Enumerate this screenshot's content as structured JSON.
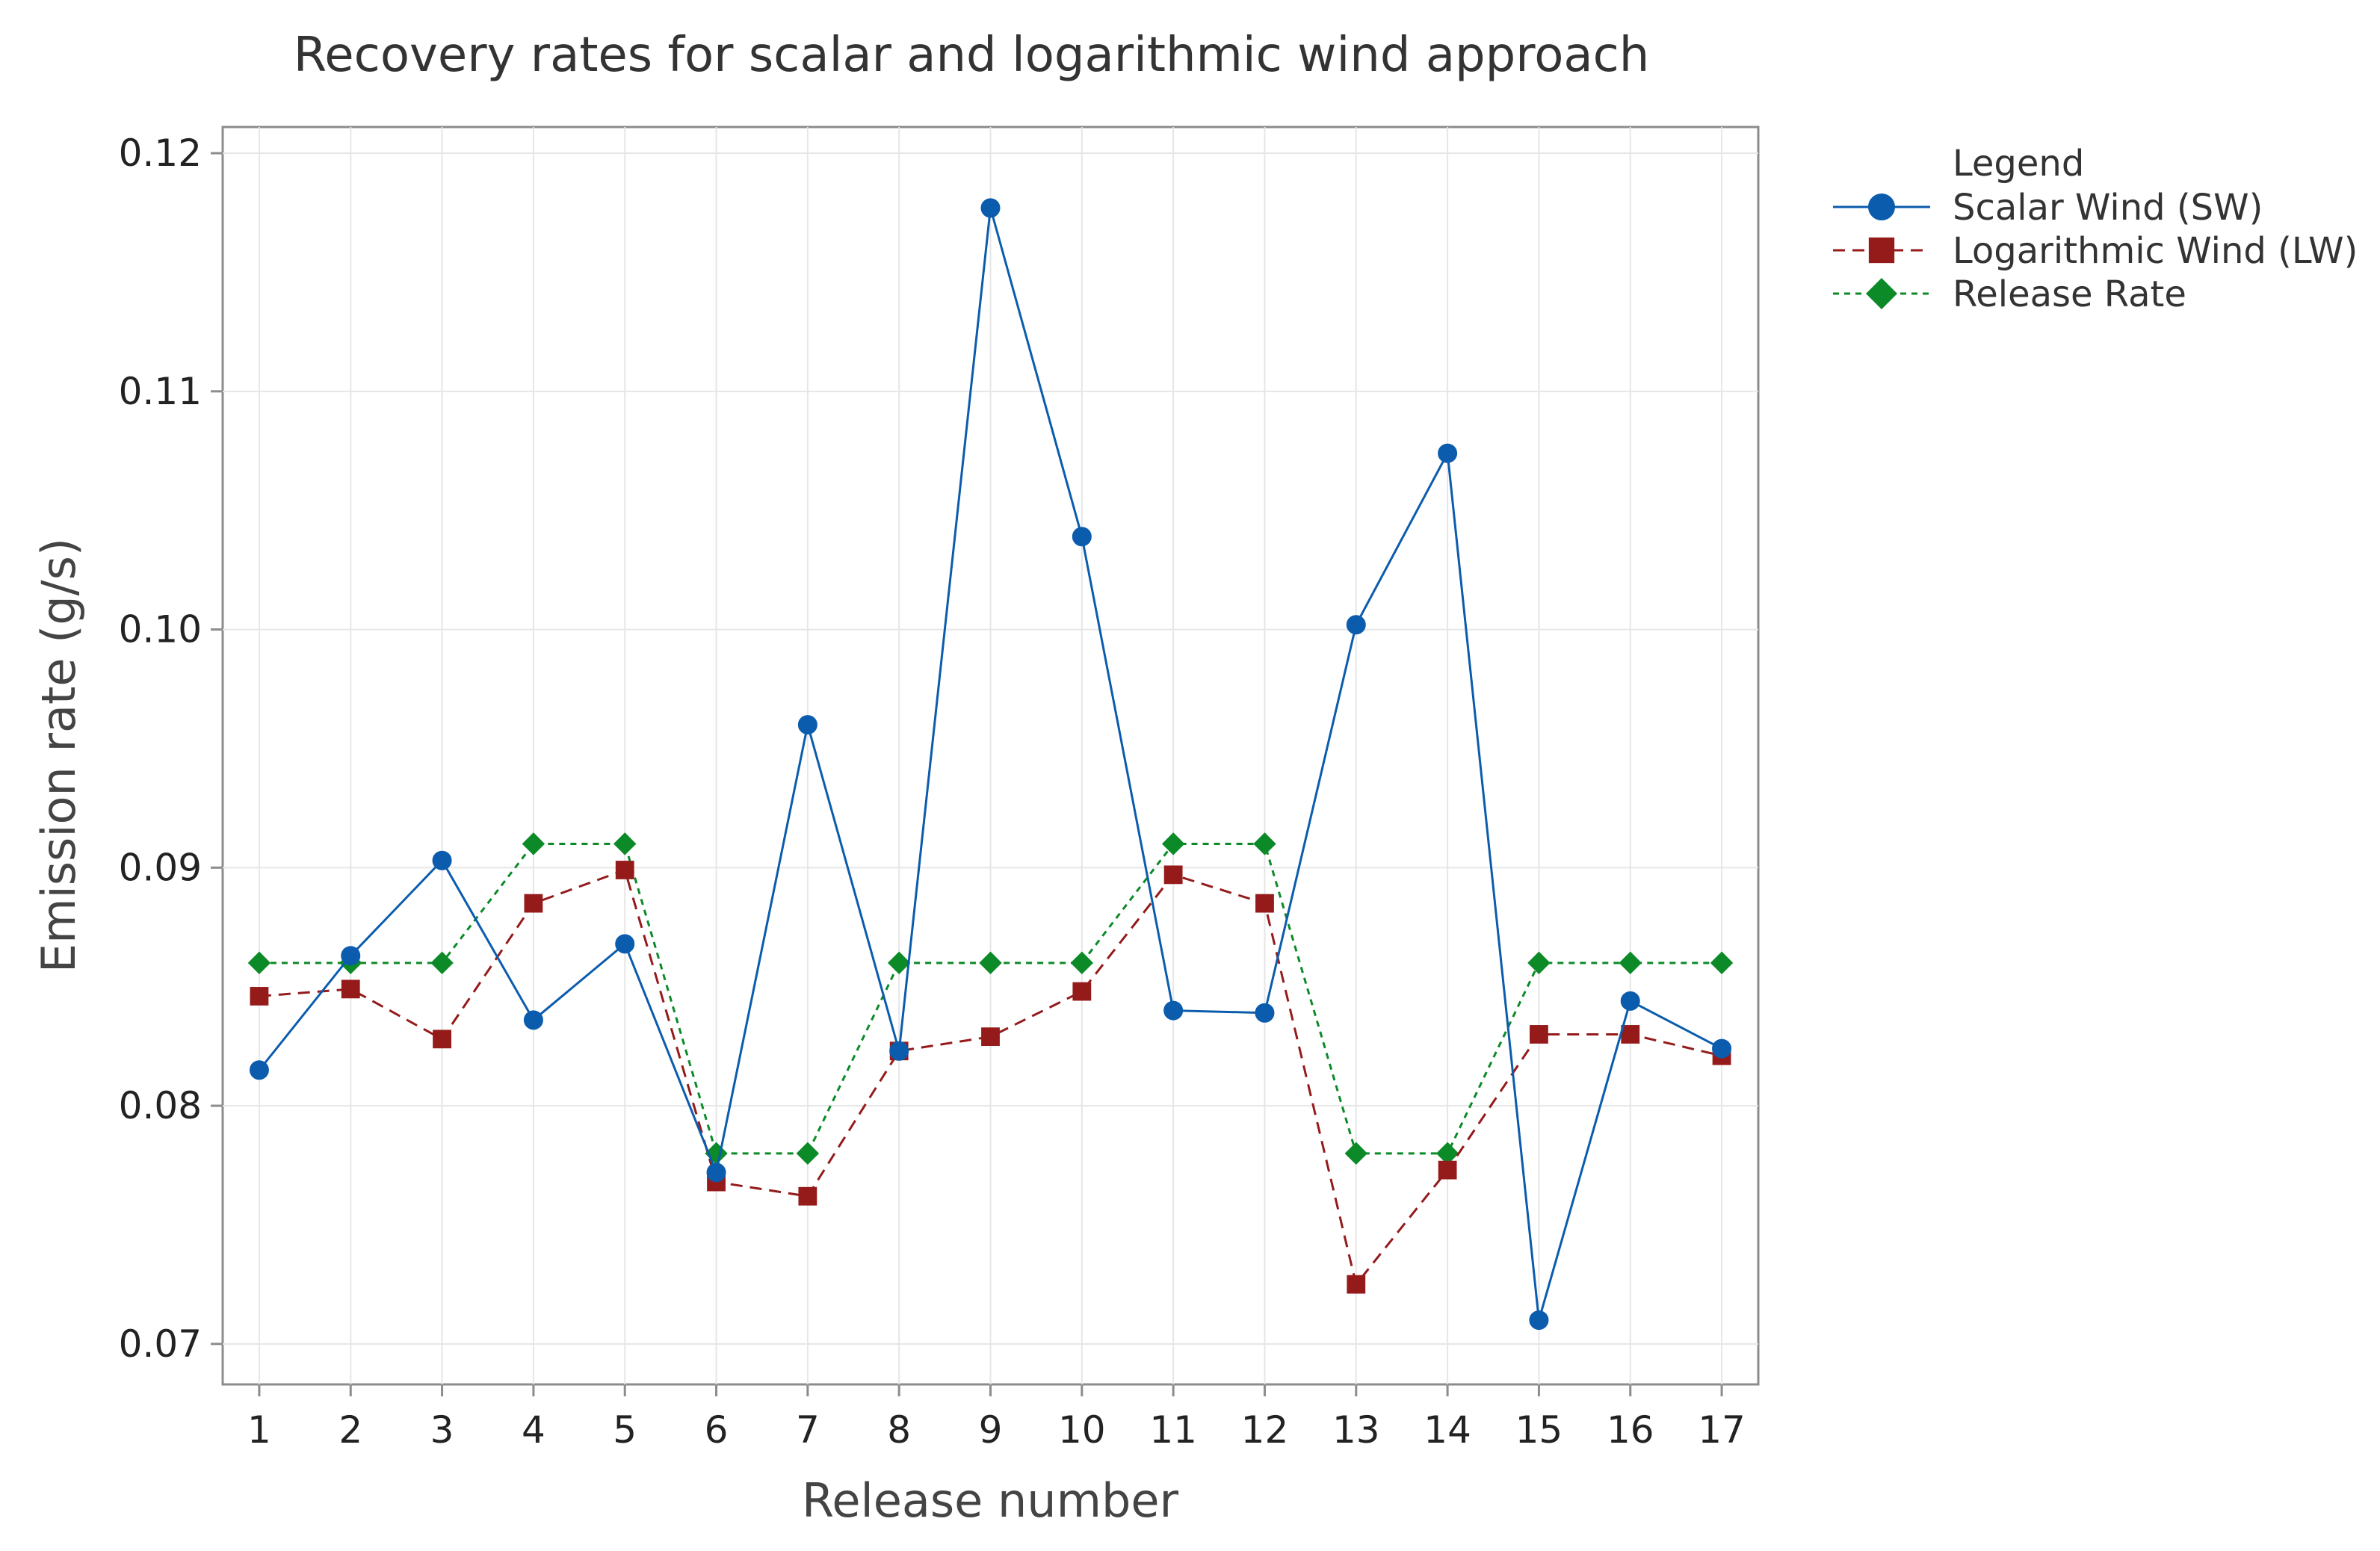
{
  "chart_data": {
    "type": "line",
    "title": "Recovery rates for scalar and logarithmic wind approach",
    "xlabel": "Release number",
    "ylabel": "Emission rate (g/s)",
    "categories": [
      "1",
      "2",
      "3",
      "4",
      "5",
      "6",
      "7",
      "8",
      "9",
      "10",
      "11",
      "12",
      "13",
      "14",
      "15",
      "16",
      "17"
    ],
    "x": [
      1,
      2,
      3,
      4,
      5,
      6,
      7,
      8,
      9,
      10,
      11,
      12,
      13,
      14,
      15,
      16,
      17
    ],
    "xlim": [
      0.6,
      17.4
    ],
    "ylim": [
      0.0683,
      0.1211
    ],
    "yticks": [
      0.07,
      0.08,
      0.09,
      0.1,
      0.11,
      0.12
    ],
    "ytick_labels": [
      "0.07",
      "0.08",
      "0.09",
      "0.10",
      "0.11",
      "0.12"
    ],
    "grid": true,
    "legend_position": "outside-top-right",
    "legend_title": "Legend",
    "series": [
      {
        "name": "Scalar Wind (SW)",
        "color": "#0b5cad",
        "line_style": "solid",
        "marker": "circle",
        "values": [
          0.0815,
          0.0863,
          0.0903,
          0.0836,
          0.0868,
          0.0772,
          0.096,
          0.0823,
          0.1177,
          0.1039,
          0.084,
          0.0839,
          0.1002,
          0.1074,
          0.071,
          0.0844,
          0.0824
        ]
      },
      {
        "name": "Logarithmic Wind (LW)",
        "color": "#951b1b",
        "line_style": "dashed",
        "marker": "square",
        "values": [
          0.0846,
          0.0849,
          0.0828,
          0.0885,
          0.0899,
          0.0768,
          0.0762,
          0.0823,
          0.0829,
          0.0848,
          0.0897,
          0.0885,
          0.0725,
          0.0773,
          0.083,
          0.083,
          0.0821
        ]
      },
      {
        "name": "Release Rate",
        "color": "#0c8a28",
        "line_style": "dotted",
        "marker": "diamond",
        "values": [
          0.086,
          0.086,
          0.086,
          0.091,
          0.091,
          0.078,
          0.078,
          0.086,
          0.086,
          0.086,
          0.091,
          0.091,
          0.078,
          0.078,
          0.086,
          0.086,
          0.086
        ]
      }
    ]
  }
}
